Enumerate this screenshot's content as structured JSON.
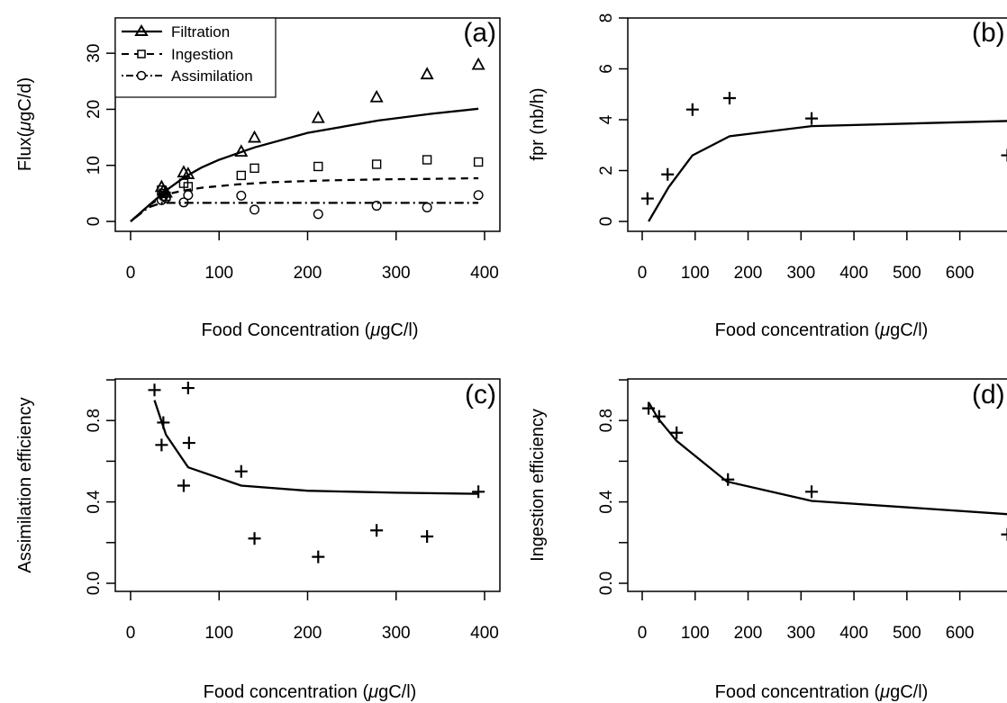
{
  "chart_data": [
    {
      "id": "a",
      "type": "scatter",
      "panel_label": "(a)",
      "xlabel_pre": "Food Concentration (",
      "xlabel_mu": "μ",
      "xlabel_post": "gC/l)",
      "ylabel_pre": "Flux(",
      "ylabel_mu": "μ",
      "ylabel_post": "gC/d)",
      "xlim": [
        0,
        400
      ],
      "ylim": [
        0,
        35
      ],
      "xticks": [
        0,
        100,
        200,
        300,
        400
      ],
      "yticks": [
        0,
        10,
        20,
        30
      ],
      "legend_position": "top-left",
      "series": [
        {
          "name": "Filtration",
          "marker": "triangle",
          "x": [
            35,
            37,
            40,
            60,
            65,
            125,
            140,
            212,
            278,
            335,
            393
          ],
          "y": [
            6.2,
            5.5,
            5.2,
            8.8,
            8.5,
            12.5,
            15.0,
            18.5,
            22.2,
            26.3,
            28.0
          ]
        },
        {
          "name": "Ingestion",
          "marker": "square",
          "x": [
            35,
            37,
            40,
            60,
            65,
            125,
            140,
            212,
            278,
            335,
            393
          ],
          "y": [
            5.6,
            5.0,
            4.5,
            6.8,
            6.2,
            8.2,
            9.5,
            9.8,
            10.2,
            11.0,
            10.6
          ]
        },
        {
          "name": "Assimilation",
          "marker": "circle",
          "x": [
            35,
            37,
            40,
            60,
            65,
            125,
            140,
            212,
            278,
            335,
            393
          ],
          "y": [
            3.8,
            4.5,
            4.2,
            3.4,
            4.7,
            4.6,
            2.1,
            1.3,
            2.8,
            2.5,
            4.7
          ]
        }
      ],
      "lines": [
        {
          "style": "solid",
          "x": [
            0,
            20,
            40,
            60,
            80,
            100,
            140,
            200,
            280,
            340,
            393
          ],
          "y": [
            0,
            2.8,
            5.5,
            7.8,
            9.6,
            11.0,
            13.2,
            15.8,
            18.0,
            19.2,
            20.1
          ]
        },
        {
          "style": "dashed",
          "x": [
            0,
            20,
            40,
            60,
            80,
            120,
            160,
            220,
            280,
            340,
            393
          ],
          "y": [
            0,
            2.8,
            4.8,
            5.5,
            6.0,
            6.6,
            7.0,
            7.3,
            7.5,
            7.6,
            7.7
          ]
        },
        {
          "style": "dashdot",
          "x": [
            0,
            20,
            35,
            60,
            100,
            200,
            300,
            393
          ],
          "y": [
            0,
            2.5,
            3.3,
            3.3,
            3.3,
            3.3,
            3.3,
            3.3
          ]
        }
      ]
    },
    {
      "id": "b",
      "type": "scatter",
      "panel_label": "(b)",
      "xlabel_pre": "Food concentration (",
      "xlabel_mu": "μ",
      "xlabel_post": "gC/l)",
      "ylabel": "fpr (nb/h)",
      "xlim": [
        0,
        650
      ],
      "ylim": [
        0,
        8
      ],
      "xticks": [
        0,
        100,
        200,
        300,
        400,
        500,
        600
      ],
      "yticks": [
        0,
        2,
        4,
        6,
        8
      ],
      "series": [
        {
          "name": "",
          "marker": "plus",
          "x": [
            10,
            48,
            95,
            165,
            320,
            690
          ],
          "y": [
            0.9,
            1.85,
            4.4,
            4.85,
            4.05,
            2.6
          ]
        }
      ],
      "lines": [
        {
          "style": "solid",
          "x": [
            12,
            50,
            95,
            165,
            320,
            690
          ],
          "y": [
            0.0,
            1.35,
            2.6,
            3.35,
            3.75,
            3.95
          ]
        }
      ]
    },
    {
      "id": "c",
      "type": "scatter",
      "panel_label": "(c)",
      "xlabel_pre": "Food concentration (",
      "xlabel_mu": "μ",
      "xlabel_post": "gC/l)",
      "ylabel": "Assimilation efficiency",
      "xlim": [
        0,
        400
      ],
      "ylim": [
        0,
        1
      ],
      "xticks": [
        0,
        100,
        200,
        300,
        400
      ],
      "yticks": [
        0.0,
        0.2,
        0.4,
        0.6,
        0.8,
        1.0
      ],
      "ytick_labels": [
        "0.0",
        "",
        "0.4",
        "",
        "0.8",
        ""
      ],
      "series": [
        {
          "name": "",
          "marker": "plus",
          "x": [
            27,
            37,
            35,
            60,
            65,
            66,
            125,
            140,
            212,
            278,
            335,
            393
          ],
          "y": [
            0.95,
            0.79,
            0.68,
            0.48,
            0.96,
            0.69,
            0.55,
            0.22,
            0.13,
            0.26,
            0.23,
            0.45
          ]
        }
      ],
      "lines": [
        {
          "style": "solid",
          "x": [
            27,
            40,
            65,
            125,
            200,
            300,
            393
          ],
          "y": [
            0.9,
            0.73,
            0.57,
            0.48,
            0.455,
            0.445,
            0.44
          ]
        }
      ]
    },
    {
      "id": "d",
      "type": "scatter",
      "panel_label": "(d)",
      "xlabel_pre": "Food concentration (",
      "xlabel_mu": "μ",
      "xlabel_post": "gC/l)",
      "ylabel": "Ingestion efficiency",
      "xlim": [
        0,
        650
      ],
      "ylim": [
        0,
        1
      ],
      "xticks": [
        0,
        100,
        200,
        300,
        400,
        500,
        600
      ],
      "yticks": [
        0.0,
        0.2,
        0.4,
        0.6,
        0.8,
        1.0
      ],
      "ytick_labels": [
        "0.0",
        "",
        "0.4",
        "",
        "0.8",
        ""
      ],
      "series": [
        {
          "name": "",
          "marker": "plus",
          "x": [
            12,
            32,
            65,
            162,
            320,
            690
          ],
          "y": [
            0.86,
            0.82,
            0.74,
            0.51,
            0.45,
            0.24
          ]
        }
      ],
      "lines": [
        {
          "style": "solid",
          "x": [
            12,
            30,
            65,
            160,
            320,
            690
          ],
          "y": [
            0.89,
            0.81,
            0.7,
            0.5,
            0.405,
            0.34
          ]
        }
      ]
    }
  ]
}
